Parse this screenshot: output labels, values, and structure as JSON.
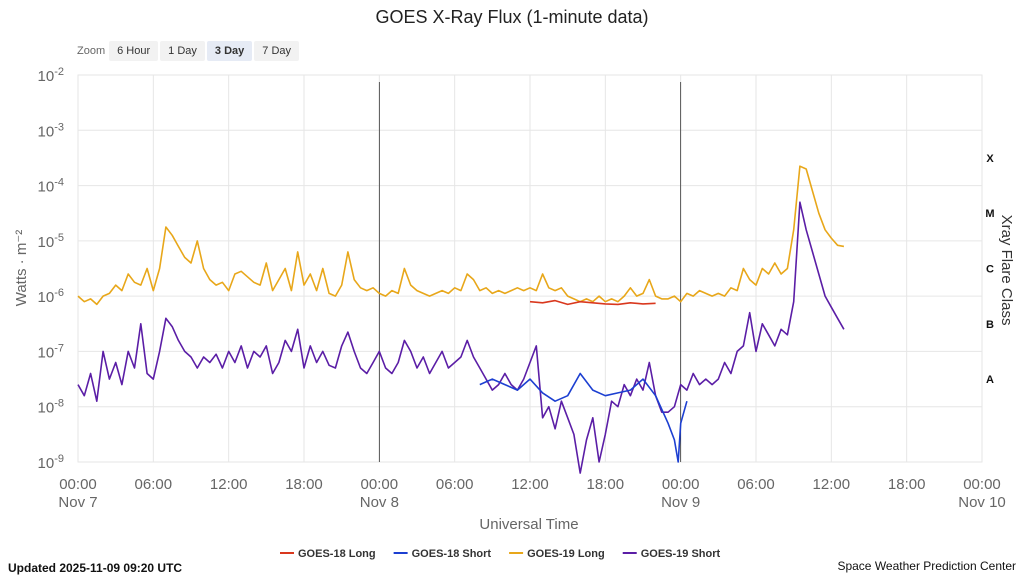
{
  "chart_data": {
    "type": "line",
    "title": "GOES X-Ray Flux (1-minute data)",
    "xlabel": "Universal Time",
    "ylabel": "Watts · m⁻²",
    "y2label": "Xray Flare Class",
    "yscale": "log",
    "ylim_exp": [
      -9,
      -2
    ],
    "y_ticks": [
      {
        "base": "10",
        "exp": "-2",
        "v": -2
      },
      {
        "base": "10",
        "exp": "-3",
        "v": -3
      },
      {
        "base": "10",
        "exp": "-4",
        "v": -4
      },
      {
        "base": "10",
        "exp": "-5",
        "v": -5
      },
      {
        "base": "10",
        "exp": "-6",
        "v": -6
      },
      {
        "base": "10",
        "exp": "-7",
        "v": -7
      },
      {
        "base": "10",
        "exp": "-8",
        "v": -8
      },
      {
        "base": "10",
        "exp": "-9",
        "v": -9
      }
    ],
    "flare_classes": [
      {
        "label": "X",
        "v": -3.5
      },
      {
        "label": "M",
        "v": -4.5
      },
      {
        "label": "C",
        "v": -5.5
      },
      {
        "label": "B",
        "v": -6.5
      },
      {
        "label": "A",
        "v": -7.5
      }
    ],
    "xlim_hours": [
      0,
      72
    ],
    "x_ticks": [
      {
        "h": 0,
        "label": "00:00",
        "date": "Nov 7"
      },
      {
        "h": 6,
        "label": "06:00",
        "date": ""
      },
      {
        "h": 12,
        "label": "12:00",
        "date": ""
      },
      {
        "h": 18,
        "label": "18:00",
        "date": ""
      },
      {
        "h": 24,
        "label": "00:00",
        "date": "Nov 8"
      },
      {
        "h": 30,
        "label": "06:00",
        "date": ""
      },
      {
        "h": 36,
        "label": "12:00",
        "date": ""
      },
      {
        "h": 42,
        "label": "18:00",
        "date": ""
      },
      {
        "h": 48,
        "label": "00:00",
        "date": "Nov 9"
      },
      {
        "h": 54,
        "label": "06:00",
        "date": ""
      },
      {
        "h": 60,
        "label": "12:00",
        "date": ""
      },
      {
        "h": 66,
        "label": "18:00",
        "date": ""
      },
      {
        "h": 72,
        "label": "00:00",
        "date": "Nov 10"
      }
    ],
    "day_lines_hours": [
      24,
      48
    ],
    "legend_position": "bottom",
    "series": [
      {
        "name": "GOES-18 Long",
        "color": "#d9381e",
        "points": [
          [
            36,
            -6.1
          ],
          [
            37,
            -6.12
          ],
          [
            38,
            -6.08
          ],
          [
            39,
            -6.15
          ],
          [
            40,
            -6.1
          ],
          [
            41,
            -6.12
          ],
          [
            42,
            -6.14
          ],
          [
            43,
            -6.15
          ],
          [
            44,
            -6.12
          ],
          [
            45,
            -6.14
          ],
          [
            46,
            -6.13
          ]
        ]
      },
      {
        "name": "GOES-18 Short",
        "color": "#1c3fd1",
        "points": [
          [
            32,
            -7.6
          ],
          [
            33,
            -7.5
          ],
          [
            34,
            -7.6
          ],
          [
            35,
            -7.7
          ],
          [
            36,
            -7.5
          ],
          [
            37,
            -7.75
          ],
          [
            38,
            -7.9
          ],
          [
            39,
            -7.8
          ],
          [
            40,
            -7.4
          ],
          [
            41,
            -7.7
          ],
          [
            42,
            -7.8
          ],
          [
            43,
            -7.75
          ],
          [
            44,
            -7.7
          ],
          [
            45,
            -7.5
          ],
          [
            46,
            -7.8
          ],
          [
            47,
            -8.3
          ],
          [
            47.5,
            -8.6
          ],
          [
            47.8,
            -9.0
          ],
          [
            48,
            -8.3
          ],
          [
            48.5,
            -7.9
          ]
        ]
      },
      {
        "name": "GOES-19 Long",
        "color": "#e8a71a",
        "points": [
          [
            0,
            -6.0
          ],
          [
            0.5,
            -6.1
          ],
          [
            1,
            -6.05
          ],
          [
            1.5,
            -6.15
          ],
          [
            2,
            -6.0
          ],
          [
            2.5,
            -5.95
          ],
          [
            3,
            -5.8
          ],
          [
            3.5,
            -5.9
          ],
          [
            4,
            -5.6
          ],
          [
            4.5,
            -5.75
          ],
          [
            5,
            -5.8
          ],
          [
            5.5,
            -5.5
          ],
          [
            6,
            -5.9
          ],
          [
            6.5,
            -5.5
          ],
          [
            7,
            -4.75
          ],
          [
            7.5,
            -4.9
          ],
          [
            8,
            -5.1
          ],
          [
            8.5,
            -5.3
          ],
          [
            9,
            -5.4
          ],
          [
            9.5,
            -5.0
          ],
          [
            10,
            -5.5
          ],
          [
            10.5,
            -5.7
          ],
          [
            11,
            -5.8
          ],
          [
            11.5,
            -5.75
          ],
          [
            12,
            -5.9
          ],
          [
            12.5,
            -5.6
          ],
          [
            13,
            -5.55
          ],
          [
            13.5,
            -5.65
          ],
          [
            14,
            -5.75
          ],
          [
            14.5,
            -5.8
          ],
          [
            15,
            -5.4
          ],
          [
            15.5,
            -5.9
          ],
          [
            16,
            -5.7
          ],
          [
            16.5,
            -5.5
          ],
          [
            17,
            -5.9
          ],
          [
            17.5,
            -5.2
          ],
          [
            18,
            -5.8
          ],
          [
            18.5,
            -5.6
          ],
          [
            19,
            -5.9
          ],
          [
            19.5,
            -5.5
          ],
          [
            20,
            -5.95
          ],
          [
            20.5,
            -6.0
          ],
          [
            21,
            -5.8
          ],
          [
            21.5,
            -5.2
          ],
          [
            22,
            -5.7
          ],
          [
            22.5,
            -5.85
          ],
          [
            23,
            -5.9
          ],
          [
            23.5,
            -5.85
          ],
          [
            24,
            -5.95
          ],
          [
            24.5,
            -6.0
          ],
          [
            25,
            -5.9
          ],
          [
            25.5,
            -5.95
          ],
          [
            26,
            -5.5
          ],
          [
            26.5,
            -5.8
          ],
          [
            27,
            -5.9
          ],
          [
            27.5,
            -5.95
          ],
          [
            28,
            -6.0
          ],
          [
            28.5,
            -5.95
          ],
          [
            29,
            -5.9
          ],
          [
            29.5,
            -5.95
          ],
          [
            30,
            -5.85
          ],
          [
            30.5,
            -5.9
          ],
          [
            31,
            -5.6
          ],
          [
            31.5,
            -5.7
          ],
          [
            32,
            -5.9
          ],
          [
            32.5,
            -5.85
          ],
          [
            33,
            -5.95
          ],
          [
            33.5,
            -5.9
          ],
          [
            34,
            -5.95
          ],
          [
            34.5,
            -5.9
          ],
          [
            35,
            -5.85
          ],
          [
            35.5,
            -5.9
          ],
          [
            36,
            -5.85
          ],
          [
            36.5,
            -5.9
          ],
          [
            37,
            -5.6
          ],
          [
            37.5,
            -5.85
          ],
          [
            38,
            -5.9
          ],
          [
            38.5,
            -5.85
          ],
          [
            39,
            -6.0
          ],
          [
            39.5,
            -6.05
          ],
          [
            40,
            -6.1
          ],
          [
            40.5,
            -6.05
          ],
          [
            41,
            -6.1
          ],
          [
            41.5,
            -6.0
          ],
          [
            42,
            -6.1
          ],
          [
            42.5,
            -6.05
          ],
          [
            43,
            -6.1
          ],
          [
            43.5,
            -6.0
          ],
          [
            44,
            -5.85
          ],
          [
            44.5,
            -6.0
          ],
          [
            45,
            -5.95
          ],
          [
            45.5,
            -5.7
          ],
          [
            46,
            -6.0
          ],
          [
            46.5,
            -6.05
          ],
          [
            47,
            -6.05
          ],
          [
            47.5,
            -6.0
          ],
          [
            48,
            -6.1
          ],
          [
            48.5,
            -5.95
          ],
          [
            49,
            -6.0
          ],
          [
            49.5,
            -5.9
          ],
          [
            50,
            -5.95
          ],
          [
            50.5,
            -6.0
          ],
          [
            51,
            -5.95
          ],
          [
            51.5,
            -6.0
          ],
          [
            52,
            -5.85
          ],
          [
            52.5,
            -5.9
          ],
          [
            53,
            -5.5
          ],
          [
            53.5,
            -5.7
          ],
          [
            54,
            -5.8
          ],
          [
            54.5,
            -5.5
          ],
          [
            55,
            -5.6
          ],
          [
            55.5,
            -5.4
          ],
          [
            56,
            -5.6
          ],
          [
            56.5,
            -5.5
          ],
          [
            57,
            -4.8
          ],
          [
            57.5,
            -3.65
          ],
          [
            58,
            -3.7
          ],
          [
            58.5,
            -4.1
          ],
          [
            59,
            -4.5
          ],
          [
            59.5,
            -4.8
          ],
          [
            60,
            -4.95
          ],
          [
            60.5,
            -5.08
          ],
          [
            61,
            -5.1
          ]
        ]
      },
      {
        "name": "GOES-19 Short",
        "color": "#5b1ea6",
        "points": [
          [
            0,
            -7.6
          ],
          [
            0.5,
            -7.8
          ],
          [
            1,
            -7.4
          ],
          [
            1.5,
            -7.9
          ],
          [
            2,
            -7.0
          ],
          [
            2.5,
            -7.5
          ],
          [
            3,
            -7.2
          ],
          [
            3.5,
            -7.6
          ],
          [
            4,
            -7.0
          ],
          [
            4.5,
            -7.3
          ],
          [
            5,
            -6.5
          ],
          [
            5.5,
            -7.4
          ],
          [
            6,
            -7.5
          ],
          [
            6.5,
            -7.0
          ],
          [
            7,
            -6.4
          ],
          [
            7.5,
            -6.55
          ],
          [
            8,
            -6.8
          ],
          [
            8.5,
            -7.0
          ],
          [
            9,
            -7.1
          ],
          [
            9.5,
            -7.3
          ],
          [
            10,
            -7.1
          ],
          [
            10.5,
            -7.2
          ],
          [
            11,
            -7.05
          ],
          [
            11.5,
            -7.3
          ],
          [
            12,
            -7.0
          ],
          [
            12.5,
            -7.2
          ],
          [
            13,
            -6.9
          ],
          [
            13.5,
            -7.3
          ],
          [
            14,
            -7.0
          ],
          [
            14.5,
            -7.1
          ],
          [
            15,
            -6.9
          ],
          [
            15.5,
            -7.4
          ],
          [
            16,
            -7.2
          ],
          [
            16.5,
            -6.8
          ],
          [
            17,
            -7.0
          ],
          [
            17.5,
            -6.6
          ],
          [
            18,
            -7.3
          ],
          [
            18.5,
            -6.9
          ],
          [
            19,
            -7.2
          ],
          [
            19.5,
            -7.0
          ],
          [
            20,
            -7.25
          ],
          [
            20.5,
            -7.3
          ],
          [
            21,
            -6.9
          ],
          [
            21.5,
            -6.65
          ],
          [
            22,
            -7.0
          ],
          [
            22.5,
            -7.3
          ],
          [
            23,
            -7.4
          ],
          [
            23.5,
            -7.2
          ],
          [
            24,
            -7.0
          ],
          [
            24.5,
            -7.3
          ],
          [
            25,
            -7.4
          ],
          [
            25.5,
            -7.2
          ],
          [
            26,
            -6.8
          ],
          [
            26.5,
            -7.0
          ],
          [
            27,
            -7.3
          ],
          [
            27.5,
            -7.1
          ],
          [
            28,
            -7.4
          ],
          [
            28.5,
            -7.2
          ],
          [
            29,
            -7.0
          ],
          [
            29.5,
            -7.3
          ],
          [
            30,
            -7.2
          ],
          [
            30.5,
            -7.1
          ],
          [
            31,
            -6.8
          ],
          [
            31.5,
            -7.1
          ],
          [
            32,
            -7.3
          ],
          [
            32.5,
            -7.5
          ],
          [
            33,
            -7.7
          ],
          [
            33.5,
            -7.6
          ],
          [
            34,
            -7.4
          ],
          [
            34.5,
            -7.6
          ],
          [
            35,
            -7.7
          ],
          [
            35.5,
            -7.5
          ],
          [
            36,
            -7.2
          ],
          [
            36.5,
            -6.9
          ],
          [
            37,
            -8.2
          ],
          [
            37.5,
            -8.0
          ],
          [
            38,
            -8.4
          ],
          [
            38.5,
            -7.9
          ],
          [
            39,
            -8.2
          ],
          [
            39.5,
            -8.5
          ],
          [
            40,
            -9.2
          ],
          [
            40.5,
            -8.6
          ],
          [
            41,
            -8.2
          ],
          [
            41.5,
            -9.0
          ],
          [
            42,
            -8.5
          ],
          [
            42.5,
            -7.9
          ],
          [
            43,
            -8.0
          ],
          [
            43.5,
            -7.6
          ],
          [
            44,
            -7.8
          ],
          [
            44.5,
            -7.5
          ],
          [
            45,
            -7.7
          ],
          [
            45.5,
            -7.2
          ],
          [
            46,
            -7.8
          ],
          [
            46.5,
            -8.1
          ],
          [
            47,
            -8.1
          ],
          [
            47.5,
            -8.0
          ],
          [
            48,
            -7.6
          ],
          [
            48.5,
            -7.7
          ],
          [
            49,
            -7.4
          ],
          [
            49.5,
            -7.6
          ],
          [
            50,
            -7.5
          ],
          [
            50.5,
            -7.6
          ],
          [
            51,
            -7.5
          ],
          [
            51.5,
            -7.2
          ],
          [
            52,
            -7.4
          ],
          [
            52.5,
            -7.0
          ],
          [
            53,
            -6.9
          ],
          [
            53.5,
            -6.3
          ],
          [
            54,
            -7.0
          ],
          [
            54.5,
            -6.5
          ],
          [
            55,
            -6.7
          ],
          [
            55.5,
            -6.9
          ],
          [
            56,
            -6.6
          ],
          [
            56.5,
            -6.7
          ],
          [
            57,
            -6.1
          ],
          [
            57.5,
            -4.3
          ],
          [
            58,
            -4.8
          ],
          [
            58.5,
            -5.2
          ],
          [
            59,
            -5.6
          ],
          [
            59.5,
            -6.0
          ],
          [
            60,
            -6.2
          ],
          [
            60.5,
            -6.4
          ],
          [
            61,
            -6.6
          ]
        ]
      }
    ]
  },
  "zoom": {
    "label": "Zoom",
    "buttons": [
      "6 Hour",
      "1 Day",
      "3 Day",
      "7 Day"
    ],
    "active": "3 Day"
  },
  "footer": {
    "updated": "Updated 2025-11-09 09:20 UTC",
    "credit": "Space Weather Prediction Center"
  },
  "colors": {
    "grid": "#e6e6e6",
    "axis_text": "#666666",
    "day_line": "#333333"
  }
}
